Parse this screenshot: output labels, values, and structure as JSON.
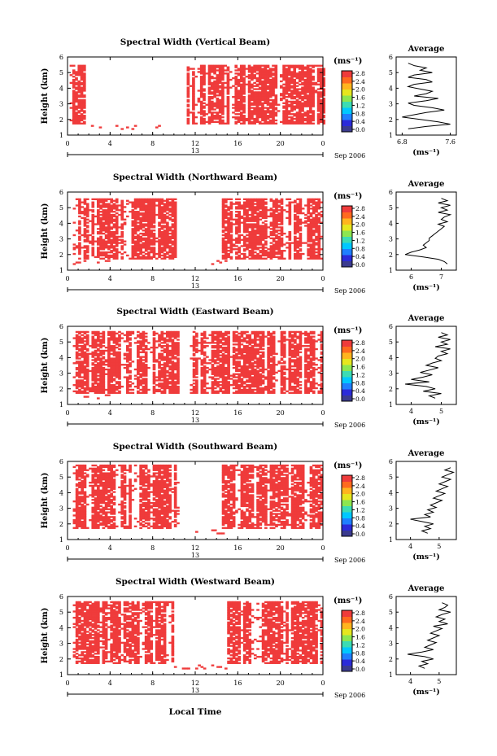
{
  "figure": {
    "x_label": "Local Time",
    "date_label": "Sep 2006",
    "day_label": "13",
    "time_ticks": [
      "0",
      "4",
      "8",
      "12",
      "16",
      "20",
      "0"
    ],
    "height_ticks": [
      "1",
      "2",
      "3",
      "4",
      "5",
      "6"
    ],
    "colorbar_ticks": [
      "0.0",
      "0.4",
      "0.8",
      "1.2",
      "1.6",
      "2.0",
      "2.4",
      "2.8"
    ],
    "colorbar_unit": "(ms⁻¹)",
    "colorbar_colors": [
      "#3b3b8f",
      "#2b2bd9",
      "#1f7fff",
      "#00c8ff",
      "#3cdcb4",
      "#8ce650",
      "#e6e61e",
      "#ffb41e",
      "#ff6a1e",
      "#ef3b3b"
    ]
  },
  "chart_data": [
    {
      "type": "heatmap",
      "title": "Spectral Width (Vertical Beam)",
      "ylabel": "Height (km)",
      "xlim": [
        0,
        24
      ],
      "ylim": [
        1,
        6
      ],
      "clim": [
        0,
        2.8
      ],
      "fill_color": "#ef3b3b",
      "occupied_segments": [
        [
          0.2,
          1.5
        ],
        [
          11.2,
          24.0
        ]
      ],
      "low_rows_extra": [
        [
          2.2,
          3.0
        ],
        [
          4.5,
          7.0
        ],
        [
          8.0,
          9.0
        ]
      ],
      "top_km": 5.45,
      "profile": {
        "title": "Average",
        "xlabel": "(ms⁻¹)",
        "xticks": [
          "6.8",
          "7.6"
        ],
        "xlim": [
          6.7,
          7.7
        ],
        "x": [
          6.9,
          7.0,
          7.2,
          7.1,
          7.3,
          7.0,
          6.9,
          7.2,
          7.3,
          7.0,
          6.9,
          7.1,
          7.3,
          7.2,
          7.0,
          7.4,
          7.2,
          6.9,
          7.0,
          7.3,
          7.5,
          7.2,
          7.0,
          6.8,
          7.1,
          7.4,
          7.6,
          7.2,
          6.9
        ],
        "y": [
          5.6,
          5.45,
          5.3,
          5.15,
          5.0,
          4.85,
          4.7,
          4.55,
          4.4,
          4.25,
          4.1,
          3.95,
          3.8,
          3.65,
          3.5,
          3.35,
          3.2,
          3.05,
          2.9,
          2.75,
          2.6,
          2.45,
          2.3,
          2.15,
          2.0,
          1.85,
          1.7,
          1.55,
          1.4
        ]
      }
    },
    {
      "type": "heatmap",
      "title": "Spectral Width (Northward Beam)",
      "ylabel": "Height (km)",
      "xlim": [
        0,
        24
      ],
      "ylim": [
        1,
        6
      ],
      "clim": [
        0,
        2.8
      ],
      "fill_color": "#ef3b3b",
      "occupied_segments": [
        [
          0.5,
          10.2
        ],
        [
          14.5,
          23.8
        ]
      ],
      "low_rows_extra": [
        [
          0.5,
          4.0
        ],
        [
          13.5,
          15.0
        ]
      ],
      "top_km": 5.5,
      "profile": {
        "title": "Average",
        "xlabel": "(ms⁻¹)",
        "xticks": [
          "6",
          "7"
        ],
        "xlim": [
          5.5,
          7.5
        ],
        "x": [
          7.0,
          7.2,
          6.9,
          7.3,
          7.0,
          7.2,
          6.9,
          7.3,
          7.1,
          7.0,
          7.2,
          6.9,
          7.1,
          7.0,
          6.9,
          6.8,
          6.7,
          6.6,
          6.6,
          6.5,
          6.4,
          6.5,
          6.3,
          6.0,
          5.8,
          6.4,
          6.9,
          7.1,
          7.2
        ],
        "y": [
          5.6,
          5.45,
          5.3,
          5.15,
          5.0,
          4.85,
          4.7,
          4.55,
          4.4,
          4.25,
          4.1,
          3.95,
          3.8,
          3.65,
          3.5,
          3.35,
          3.2,
          3.05,
          2.9,
          2.75,
          2.6,
          2.45,
          2.3,
          2.15,
          2.0,
          1.85,
          1.7,
          1.55,
          1.4
        ]
      }
    },
    {
      "type": "heatmap",
      "title": "Spectral Width (Eastward Beam)",
      "ylabel": "Height (km)",
      "xlim": [
        0,
        24
      ],
      "ylim": [
        1,
        6
      ],
      "clim": [
        0,
        2.8
      ],
      "fill_color": "#ef3b3b",
      "occupied_segments": [
        [
          0.5,
          10.3
        ],
        [
          11.5,
          23.8
        ]
      ],
      "low_rows_extra": [
        [
          1.5,
          4.0
        ]
      ],
      "top_km": 5.6,
      "profile": {
        "title": "Average",
        "xlabel": "(ms⁻¹)",
        "xticks": [
          "4",
          "5"
        ],
        "xlim": [
          3.5,
          5.5
        ],
        "x": [
          5.0,
          5.2,
          4.9,
          5.3,
          5.0,
          5.2,
          4.8,
          5.3,
          5.0,
          5.2,
          4.9,
          4.8,
          5.0,
          4.7,
          4.5,
          4.9,
          4.6,
          4.3,
          4.7,
          4.4,
          4.0,
          4.6,
          3.8,
          4.5,
          4.8,
          4.4,
          5.0,
          4.6,
          4.8
        ],
        "y": [
          5.6,
          5.45,
          5.3,
          5.15,
          5.0,
          4.85,
          4.7,
          4.55,
          4.4,
          4.25,
          4.1,
          3.95,
          3.8,
          3.65,
          3.5,
          3.35,
          3.2,
          3.05,
          2.9,
          2.75,
          2.6,
          2.45,
          2.3,
          2.15,
          2.0,
          1.85,
          1.7,
          1.55,
          1.4
        ]
      }
    },
    {
      "type": "heatmap",
      "title": "Spectral Width (Southward Beam)",
      "ylabel": "Height (km)",
      "xlim": [
        0,
        24
      ],
      "ylim": [
        1,
        6
      ],
      "clim": [
        0,
        2.8
      ],
      "fill_color": "#ef3b3b",
      "occupied_segments": [
        [
          0.5,
          10.3
        ],
        [
          14.5,
          23.8
        ]
      ],
      "low_rows_extra": [
        [
          11.5,
          12.5
        ],
        [
          13.5,
          15.0
        ]
      ],
      "top_km": 5.7,
      "profile": {
        "title": "Average",
        "xlabel": "(ms⁻¹)",
        "xticks": [
          "4",
          "5"
        ],
        "xlim": [
          3.5,
          5.6
        ],
        "x": [
          5.4,
          5.2,
          5.5,
          5.3,
          5.1,
          5.4,
          5.2,
          5.0,
          5.3,
          5.1,
          4.9,
          5.2,
          5.0,
          4.8,
          5.1,
          4.9,
          4.7,
          4.9,
          4.6,
          4.8,
          4.5,
          4.7,
          4.0,
          4.4,
          4.8,
          4.5,
          4.7,
          4.4,
          4.6
        ],
        "y": [
          5.6,
          5.45,
          5.3,
          5.15,
          5.0,
          4.85,
          4.7,
          4.55,
          4.4,
          4.25,
          4.1,
          3.95,
          3.8,
          3.65,
          3.5,
          3.35,
          3.2,
          3.05,
          2.9,
          2.75,
          2.6,
          2.45,
          2.3,
          2.15,
          2.0,
          1.85,
          1.7,
          1.55,
          1.4
        ]
      }
    },
    {
      "type": "heatmap",
      "title": "Spectral Width (Westward Beam)",
      "ylabel": "Height (km)",
      "xlim": [
        0,
        24
      ],
      "ylim": [
        1,
        6
      ],
      "clim": [
        0,
        2.8
      ],
      "fill_color": "#ef3b3b",
      "occupied_segments": [
        [
          0.5,
          10.0
        ],
        [
          15.0,
          23.8
        ]
      ],
      "low_rows_extra": [
        [
          10.0,
          15.0
        ]
      ],
      "top_km": 5.6,
      "profile": {
        "title": "Average",
        "xlabel": "(ms⁻¹)",
        "xticks": [
          "4",
          "5"
        ],
        "xlim": [
          3.5,
          5.6
        ],
        "x": [
          5.1,
          5.3,
          5.2,
          5.0,
          5.4,
          5.1,
          4.9,
          5.2,
          5.0,
          5.3,
          4.8,
          5.1,
          4.9,
          4.7,
          5.0,
          4.8,
          4.6,
          4.9,
          4.7,
          4.5,
          4.8,
          4.4,
          3.9,
          4.5,
          4.8,
          4.4,
          4.6,
          4.3,
          4.5
        ],
        "y": [
          5.6,
          5.45,
          5.3,
          5.15,
          5.0,
          4.85,
          4.7,
          4.55,
          4.4,
          4.25,
          4.1,
          3.95,
          3.8,
          3.65,
          3.5,
          3.35,
          3.2,
          3.05,
          2.9,
          2.75,
          2.6,
          2.45,
          2.3,
          2.15,
          2.0,
          1.85,
          1.7,
          1.55,
          1.4
        ]
      }
    }
  ]
}
